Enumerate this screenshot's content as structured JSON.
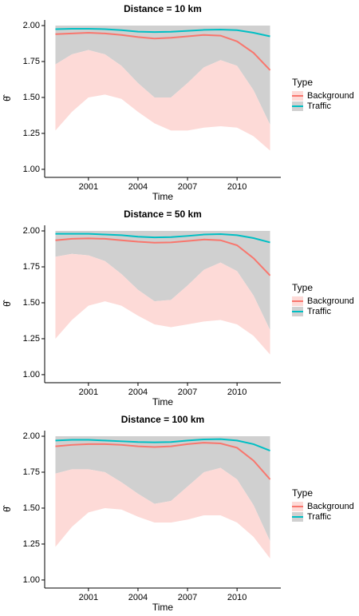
{
  "chart_data": [
    {
      "type": "ribbon-line",
      "title": "Distance =  10 km",
      "x_label": "Time",
      "y_label": "θ̂",
      "legend_title": "Type",
      "x": [
        1999,
        2000,
        2001,
        2002,
        2003,
        2004,
        2005,
        2006,
        2007,
        2008,
        2009,
        2010,
        2011,
        2012
      ],
      "xlim": [
        1998.35,
        2012.65
      ],
      "xticks": [
        2001,
        2004,
        2007,
        2010
      ],
      "ylim": [
        0.944,
        2.039
      ],
      "yticks": [
        {
          "value": 1,
          "label": "1.00"
        },
        {
          "value": 1.25,
          "label": "1.25"
        },
        {
          "value": 1.5,
          "label": "1.50"
        },
        {
          "value": 1.75,
          "label": "1.75"
        },
        {
          "value": 2,
          "label": "2.00"
        }
      ],
      "series": [
        {
          "name": "Background",
          "color": "#F8766D",
          "ribbon_color": "#FDDAD7",
          "values": [
            1.94,
            1.945,
            1.95,
            1.945,
            1.935,
            1.92,
            1.91,
            1.915,
            1.925,
            1.935,
            1.93,
            1.89,
            1.81,
            1.69
          ],
          "lower": [
            1.27,
            1.4,
            1.5,
            1.52,
            1.49,
            1.4,
            1.32,
            1.27,
            1.27,
            1.29,
            1.3,
            1.29,
            1.23,
            1.13
          ],
          "upper": [
            1.73,
            1.8,
            1.83,
            1.8,
            1.72,
            1.6,
            1.5,
            1.5,
            1.6,
            1.71,
            1.76,
            1.72,
            1.55,
            1.31
          ]
        },
        {
          "name": "Traffic",
          "color": "#00BFC4",
          "ribbon_color": "#D0D0D0",
          "values": [
            1.975,
            1.978,
            1.978,
            1.975,
            1.968,
            1.958,
            1.955,
            1.957,
            1.963,
            1.97,
            1.972,
            1.968,
            1.95,
            1.925
          ],
          "lower": [
            1.73,
            1.8,
            1.83,
            1.8,
            1.72,
            1.6,
            1.5,
            1.5,
            1.6,
            1.71,
            1.76,
            1.72,
            1.55,
            1.31
          ],
          "upper": [
            2,
            2,
            2,
            2,
            2,
            2,
            2,
            2,
            2,
            2,
            2,
            2,
            2,
            2
          ]
        }
      ]
    },
    {
      "type": "ribbon-line",
      "title": "Distance =  50 km",
      "x_label": "Time",
      "y_label": "θ̂",
      "legend_title": "Type",
      "x": [
        1999,
        2000,
        2001,
        2002,
        2003,
        2004,
        2005,
        2006,
        2007,
        2008,
        2009,
        2010,
        2011,
        2012
      ],
      "xlim": [
        1998.35,
        2012.65
      ],
      "xticks": [
        2001,
        2004,
        2007,
        2010
      ],
      "ylim": [
        0.944,
        2.039
      ],
      "yticks": [
        {
          "value": 1,
          "label": "1.00"
        },
        {
          "value": 1.25,
          "label": "1.25"
        },
        {
          "value": 1.5,
          "label": "1.50"
        },
        {
          "value": 1.75,
          "label": "1.75"
        },
        {
          "value": 2,
          "label": "2.00"
        }
      ],
      "series": [
        {
          "name": "Background",
          "color": "#F8766D",
          "ribbon_color": "#FDDAD7",
          "values": [
            1.935,
            1.945,
            1.948,
            1.945,
            1.935,
            1.925,
            1.918,
            1.92,
            1.93,
            1.94,
            1.935,
            1.9,
            1.81,
            1.69
          ],
          "lower": [
            1.25,
            1.38,
            1.48,
            1.51,
            1.48,
            1.41,
            1.35,
            1.33,
            1.35,
            1.37,
            1.38,
            1.35,
            1.27,
            1.14
          ],
          "upper": [
            1.82,
            1.84,
            1.83,
            1.79,
            1.7,
            1.59,
            1.51,
            1.52,
            1.62,
            1.73,
            1.78,
            1.72,
            1.55,
            1.31
          ]
        },
        {
          "name": "Traffic",
          "color": "#00BFC4",
          "ribbon_color": "#D0D0D0",
          "values": [
            1.98,
            1.98,
            1.98,
            1.975,
            1.97,
            1.96,
            1.955,
            1.957,
            1.965,
            1.975,
            1.978,
            1.97,
            1.95,
            1.92
          ],
          "lower": [
            1.82,
            1.84,
            1.83,
            1.79,
            1.7,
            1.59,
            1.51,
            1.52,
            1.62,
            1.73,
            1.78,
            1.72,
            1.55,
            1.31
          ],
          "upper": [
            2,
            2,
            2,
            2,
            2,
            2,
            2,
            2,
            2,
            2,
            2,
            2,
            2,
            2
          ]
        }
      ]
    },
    {
      "type": "ribbon-line",
      "title": "Distance =  100 km",
      "x_label": "Time",
      "y_label": "θ̂",
      "legend_title": "Type",
      "x": [
        1999,
        2000,
        2001,
        2002,
        2003,
        2004,
        2005,
        2006,
        2007,
        2008,
        2009,
        2010,
        2011,
        2012
      ],
      "xlim": [
        1998.35,
        2012.65
      ],
      "xticks": [
        2001,
        2004,
        2007,
        2010
      ],
      "ylim": [
        0.944,
        2.039
      ],
      "yticks": [
        {
          "value": 1,
          "label": "1.00"
        },
        {
          "value": 1.25,
          "label": "1.25"
        },
        {
          "value": 1.5,
          "label": "1.50"
        },
        {
          "value": 1.75,
          "label": "1.75"
        },
        {
          "value": 2,
          "label": "2.00"
        }
      ],
      "series": [
        {
          "name": "Background",
          "color": "#F8766D",
          "ribbon_color": "#FDDAD7",
          "values": [
            1.93,
            1.94,
            1.945,
            1.945,
            1.94,
            1.93,
            1.925,
            1.93,
            1.945,
            1.955,
            1.95,
            1.92,
            1.83,
            1.7
          ],
          "lower": [
            1.23,
            1.37,
            1.47,
            1.5,
            1.49,
            1.44,
            1.4,
            1.4,
            1.42,
            1.45,
            1.45,
            1.4,
            1.3,
            1.15
          ],
          "upper": [
            1.74,
            1.77,
            1.77,
            1.75,
            1.68,
            1.6,
            1.53,
            1.55,
            1.65,
            1.75,
            1.78,
            1.7,
            1.52,
            1.27
          ]
        },
        {
          "name": "Traffic",
          "color": "#00BFC4",
          "ribbon_color": "#D0D0D0",
          "values": [
            1.97,
            1.975,
            1.975,
            1.97,
            1.965,
            1.96,
            1.958,
            1.96,
            1.97,
            1.978,
            1.98,
            1.97,
            1.945,
            1.9
          ],
          "lower": [
            1.74,
            1.77,
            1.77,
            1.75,
            1.68,
            1.6,
            1.53,
            1.55,
            1.65,
            1.75,
            1.78,
            1.7,
            1.52,
            1.27
          ],
          "upper": [
            2,
            2,
            2,
            2,
            2,
            2,
            2,
            2,
            2,
            2,
            2,
            2,
            2,
            2
          ]
        }
      ]
    }
  ]
}
